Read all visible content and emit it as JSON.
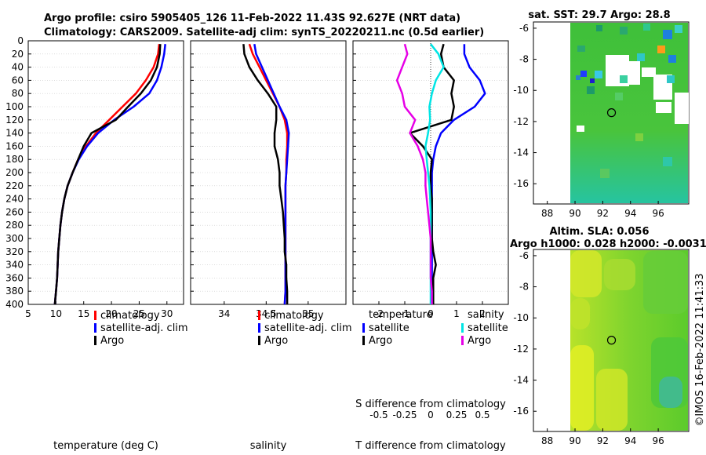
{
  "title_line1": "Argo profile: csiro 5905405_126 11-Feb-2022 11.43S 92.627E (NRT data)",
  "title_line2": "Climatology: CARS2009. Satellite-adj clim: synTS_20220211.nc (0.5d earlier)",
  "timestamp": "©IMOS 16-Feb-2022 11:41:33",
  "colors": {
    "climatology": "#ff0000",
    "satellite": "#0000ff",
    "argo": "#000000",
    "sat_salinity": "#00e5e5",
    "argo_salinity": "#e600e6"
  },
  "depth_ticks": [
    "0",
    "20",
    "40",
    "60",
    "80",
    "100",
    "120",
    "140",
    "160",
    "180",
    "200",
    "220",
    "240",
    "260",
    "280",
    "300",
    "320",
    "340",
    "360",
    "380",
    "400"
  ],
  "chart_data": [
    {
      "type": "line",
      "name": "temperature",
      "xlabel": "temperature (deg C)",
      "xlim": [
        5,
        33
      ],
      "ylim": [
        0,
        400
      ],
      "xticks": [
        "5",
        "10",
        "15",
        "20",
        "25",
        "30"
      ],
      "legend": [
        "climatology",
        "satellite-adj. clim",
        "Argo"
      ],
      "depth": [
        5,
        20,
        40,
        60,
        80,
        100,
        120,
        140,
        160,
        180,
        200,
        220,
        240,
        260,
        280,
        300,
        320,
        340,
        360,
        380,
        400
      ],
      "series": [
        {
          "name": "climatology",
          "values": [
            28.6,
            28.4,
            27.6,
            26.2,
            24.4,
            22.0,
            19.6,
            17.2,
            15.4,
            14.0,
            13.0,
            12.1,
            11.5,
            11.1,
            10.8,
            10.6,
            10.4,
            10.3,
            10.2,
            10.0,
            9.8
          ]
        },
        {
          "name": "satellite-adj. clim",
          "values": [
            29.7,
            29.5,
            29.0,
            28.2,
            26.8,
            24.0,
            20.5,
            17.6,
            15.6,
            14.1,
            13.0,
            12.1,
            11.5,
            11.1,
            10.8,
            10.6,
            10.4,
            10.3,
            10.2,
            10.0,
            9.8
          ]
        },
        {
          "name": "Argo",
          "values": [
            28.8,
            28.7,
            28.2,
            27.1,
            25.3,
            23.0,
            20.8,
            16.4,
            15.0,
            14.0,
            13.0,
            12.1,
            11.5,
            11.1,
            10.8,
            10.6,
            10.4,
            10.3,
            10.2,
            10.0,
            9.8
          ]
        }
      ]
    },
    {
      "type": "line",
      "name": "salinity",
      "xlabel": "salinity",
      "xlim": [
        33.6,
        35.45
      ],
      "ylim": [
        0,
        400
      ],
      "xticks": [
        "34",
        "34.5",
        "35"
      ],
      "legend": [
        "climatology",
        "satellite-adj. clim",
        "Argo"
      ],
      "depth": [
        5,
        20,
        40,
        60,
        80,
        100,
        120,
        140,
        160,
        180,
        200,
        220,
        240,
        260,
        280,
        300,
        320,
        340,
        360,
        380,
        400
      ],
      "series": [
        {
          "name": "climatology",
          "values": [
            34.3,
            34.34,
            34.42,
            34.5,
            34.58,
            34.66,
            34.72,
            34.75,
            34.75,
            34.74,
            34.74,
            34.73,
            34.73,
            34.73,
            34.73,
            34.73,
            34.73,
            34.73,
            34.73,
            34.73,
            34.72
          ]
        },
        {
          "name": "satellite-adj. clim",
          "values": [
            34.36,
            34.38,
            34.45,
            34.52,
            34.59,
            34.66,
            34.74,
            34.77,
            34.76,
            34.75,
            34.74,
            34.73,
            34.73,
            34.73,
            34.73,
            34.73,
            34.73,
            34.73,
            34.73,
            34.73,
            34.72
          ]
        },
        {
          "name": "Argo",
          "values": [
            34.23,
            34.24,
            34.3,
            34.4,
            34.52,
            34.62,
            34.62,
            34.6,
            34.6,
            34.64,
            34.66,
            34.66,
            34.68,
            34.7,
            34.71,
            34.72,
            34.72,
            34.74,
            34.74,
            34.75,
            34.75
          ]
        }
      ]
    },
    {
      "type": "line",
      "name": "differences",
      "xlabel": "T difference from climatology",
      "xlabel_top": "S difference from climatology",
      "xlim": [
        -3,
        3
      ],
      "ylim": [
        0,
        400
      ],
      "xticks": [
        "-2",
        "-1",
        "0",
        "1",
        "2"
      ],
      "xticks_s": [
        "-0.5",
        "-0.25",
        "0",
        "0.25",
        "0.5"
      ],
      "legend_temperature_title": "temperature",
      "legend_salinity_title": "salinity",
      "legend_temperature": [
        "satellite",
        "Argo"
      ],
      "legend_salinity": [
        "satellite",
        "Argo"
      ],
      "depth": [
        5,
        20,
        40,
        60,
        80,
        100,
        120,
        140,
        160,
        180,
        200,
        220,
        240,
        260,
        280,
        300,
        320,
        340,
        360,
        380,
        400
      ],
      "series": [
        {
          "name": "T satellite",
          "values": [
            1.3,
            1.3,
            1.5,
            1.9,
            2.1,
            1.7,
            0.9,
            0.4,
            0.2,
            0.1,
            0.05,
            0.05,
            0.05,
            0.05,
            0.05,
            0.05,
            0.05,
            0.05,
            0.05,
            0.05,
            0.05
          ]
        },
        {
          "name": "T Argo",
          "values": [
            0.5,
            0.4,
            0.5,
            0.9,
            0.8,
            0.9,
            0.8,
            -0.8,
            -0.3,
            0.05,
            0.0,
            0.0,
            0.05,
            0.05,
            0.05,
            0.05,
            0.1,
            0.2,
            0.1,
            0.1,
            0.1
          ]
        },
        {
          "name": "S satellite",
          "values": [
            0.0,
            0.3,
            0.5,
            0.2,
            0.05,
            -0.05,
            -0.02,
            -0.1,
            -0.2,
            -0.15,
            -0.1,
            -0.05,
            -0.02,
            0.0,
            0.0,
            0.0,
            0.0,
            0.0,
            0.0,
            0.0,
            0.0
          ]
        },
        {
          "name": "S Argo",
          "values": [
            -1.0,
            -0.9,
            -1.1,
            -1.3,
            -1.1,
            -1.0,
            -0.6,
            -0.8,
            -0.5,
            -0.3,
            -0.2,
            -0.2,
            -0.15,
            -0.1,
            -0.05,
            0.0,
            0.0,
            0.0,
            0.0,
            0.05,
            0.05
          ]
        }
      ]
    },
    {
      "type": "heatmap",
      "name": "sat-sst",
      "title": "sat. SST: 29.7 Argo: 28.8",
      "xticks": [
        "88",
        "90",
        "92",
        "94",
        "96"
      ],
      "yticks": [
        "-6",
        "-8",
        "-10",
        "-12",
        "-14",
        "-16"
      ],
      "xlim": [
        87,
        98.2
      ],
      "ylim": [
        -17.3,
        -5.6
      ],
      "argo_marker": [
        92.63,
        -11.43
      ]
    },
    {
      "type": "heatmap",
      "name": "altim-sla",
      "title1": "Altim. SLA: 0.056",
      "title2": "Argo h1000: 0.028 h2000: -0.0031",
      "xticks": [
        "88",
        "90",
        "92",
        "94",
        "96"
      ],
      "yticks": [
        "-6",
        "-8",
        "-10",
        "-12",
        "-14",
        "-16"
      ],
      "xlim": [
        87,
        98.2
      ],
      "ylim": [
        -17.3,
        -5.6
      ],
      "argo_marker": [
        92.63,
        -11.43
      ]
    }
  ]
}
